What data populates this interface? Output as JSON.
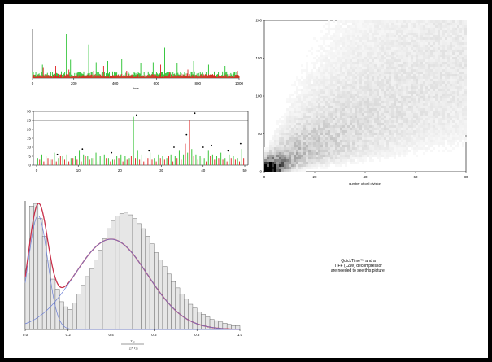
{
  "chart_data": [
    {
      "type": "bar",
      "id": "activity-timeseries",
      "xlabel": "time",
      "ylabel": "",
      "xlim": [
        0,
        1000
      ],
      "xticks": [
        "0",
        "200",
        "400",
        "600",
        "800",
        "1000"
      ],
      "series": [
        {
          "color": "#22c02a",
          "peaks": [
            [
              48,
              22
            ],
            [
              165,
              72
            ],
            [
              182,
              30
            ],
            [
              273,
              55
            ],
            [
              309,
              26
            ],
            [
              362,
              28
            ],
            [
              430,
              32
            ],
            [
              522,
              24
            ],
            [
              585,
              26
            ],
            [
              640,
              50
            ],
            [
              700,
              24
            ],
            [
              780,
              28
            ],
            [
              850,
              22
            ],
            [
              930,
              20
            ]
          ]
        },
        {
          "color": "#e02020",
          "peaks": [
            [
              52,
              18
            ],
            [
              112,
              20
            ],
            [
              176,
              14
            ],
            [
              296,
              12
            ],
            [
              345,
              20
            ],
            [
              455,
              12
            ],
            [
              618,
              22
            ],
            [
              665,
              10
            ],
            [
              750,
              14
            ],
            [
              888,
              12
            ],
            [
              990,
              12
            ]
          ]
        }
      ]
    },
    {
      "type": "bar",
      "id": "per-unit-counts",
      "xlabel": "",
      "ylabel": "",
      "xlim": [
        0,
        50
      ],
      "ylim": [
        0,
        30
      ],
      "xticks": [
        "0",
        "10",
        "20",
        "30",
        "40",
        "50"
      ],
      "yticks": [
        "0",
        "5",
        "10",
        "15",
        "20",
        "25",
        "30"
      ],
      "threshold": 25,
      "green_values": [
        4,
        6,
        5,
        3,
        7,
        4,
        5,
        6,
        4,
        5,
        8,
        6,
        5,
        4,
        7,
        5,
        6,
        4,
        3,
        5,
        6,
        5,
        4,
        27,
        8,
        6,
        5,
        7,
        4,
        6,
        5,
        4,
        6,
        5,
        8,
        6,
        7,
        9,
        6,
        5,
        4,
        8,
        6,
        5,
        7,
        4,
        6,
        5,
        4,
        9
      ],
      "red_values": [
        3,
        2,
        4,
        3,
        2,
        5,
        3,
        2,
        4,
        3,
        2,
        5,
        3,
        4,
        2,
        3,
        4,
        2,
        3,
        4,
        2,
        3,
        5,
        4,
        3,
        2,
        4,
        3,
        2,
        4,
        3,
        5,
        2,
        4,
        3,
        12,
        25,
        5,
        3,
        4,
        2,
        5,
        3,
        4,
        3,
        2,
        4,
        3,
        2,
        4
      ],
      "markers": [
        [
          5,
          6
        ],
        [
          11,
          9
        ],
        [
          18,
          7
        ],
        [
          24,
          28
        ],
        [
          27,
          8
        ],
        [
          33,
          10
        ],
        [
          36,
          17
        ],
        [
          38,
          29
        ],
        [
          40,
          10
        ],
        [
          42,
          11
        ],
        [
          46,
          8
        ],
        [
          49,
          12
        ]
      ]
    },
    {
      "type": "heatmap",
      "id": "density-2d",
      "xlabel": "number of cell division",
      "ylabel": "",
      "xlim": [
        0,
        80
      ],
      "ylim": [
        0,
        200
      ],
      "xticks": [
        "0",
        "20",
        "40",
        "60",
        "80"
      ],
      "yticks": [
        "0",
        "50",
        "100",
        "150",
        "200"
      ],
      "colormap": "grayscale",
      "description_of_density": "high density near origin, diffuse spread along diagonal"
    },
    {
      "type": "bar",
      "id": "ratio-histogram",
      "xlabel_num": "T₁₂",
      "xlabel_den": "T₁₂+T₂₃",
      "ylabel": "",
      "xlim": [
        0,
        1
      ],
      "xticks": [
        "0.0",
        "0.2",
        "0.4",
        "0.6",
        "0.8",
        "1.0"
      ],
      "bin_width": 0.02,
      "bin_heights": [
        0.45,
        0.98,
        1.0,
        0.88,
        0.74,
        0.55,
        0.4,
        0.32,
        0.22,
        0.18,
        0.16,
        0.21,
        0.28,
        0.35,
        0.42,
        0.48,
        0.55,
        0.63,
        0.72,
        0.8,
        0.86,
        0.9,
        0.92,
        0.93,
        0.91,
        0.88,
        0.84,
        0.8,
        0.74,
        0.68,
        0.61,
        0.55,
        0.5,
        0.44,
        0.38,
        0.33,
        0.28,
        0.24,
        0.2,
        0.17,
        0.14,
        0.12,
        0.1,
        0.08,
        0.07,
        0.06,
        0.05,
        0.04,
        0.03,
        0.03
      ],
      "fits": [
        {
          "kind": "mixture",
          "color": "#c8304a"
        },
        {
          "kind": "component",
          "color": "#6c7fd6",
          "mean": 0.06,
          "sd": 0.045,
          "weight": 0.25
        },
        {
          "kind": "component",
          "color": "#6c7fd6",
          "mean": 0.4,
          "sd": 0.17,
          "weight": 0.75
        }
      ]
    }
  ],
  "placeholder": {
    "lines": [
      "QuickTime™ and a",
      "TIFF (LZW) decompressor",
      "are needed to see this picture."
    ]
  }
}
